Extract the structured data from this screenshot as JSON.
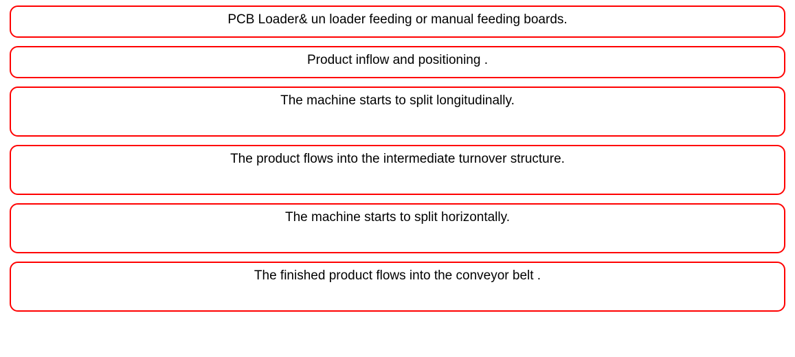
{
  "diagram": {
    "type": "flowchart",
    "background_color": "#ffffff",
    "border_color": "#ff0000",
    "border_width": 2,
    "border_radius": 12,
    "text_color": "#000000",
    "font_size": 19,
    "font_family": "Arial, sans-serif",
    "box_gap": 12,
    "steps": [
      {
        "label": "PCB Loader& un loader feeding or manual feeding boards.",
        "height": 47
      },
      {
        "label": "Product inflow and positioning .",
        "height": 47
      },
      {
        "label": "The machine starts to split longitudinally.",
        "height": 73
      },
      {
        "label": "The product flows into the intermediate turnover structure.",
        "height": 73
      },
      {
        "label": "The machine starts to split horizontally.",
        "height": 73
      },
      {
        "label": "The finished product flows into the conveyor belt .",
        "height": 73
      }
    ]
  }
}
